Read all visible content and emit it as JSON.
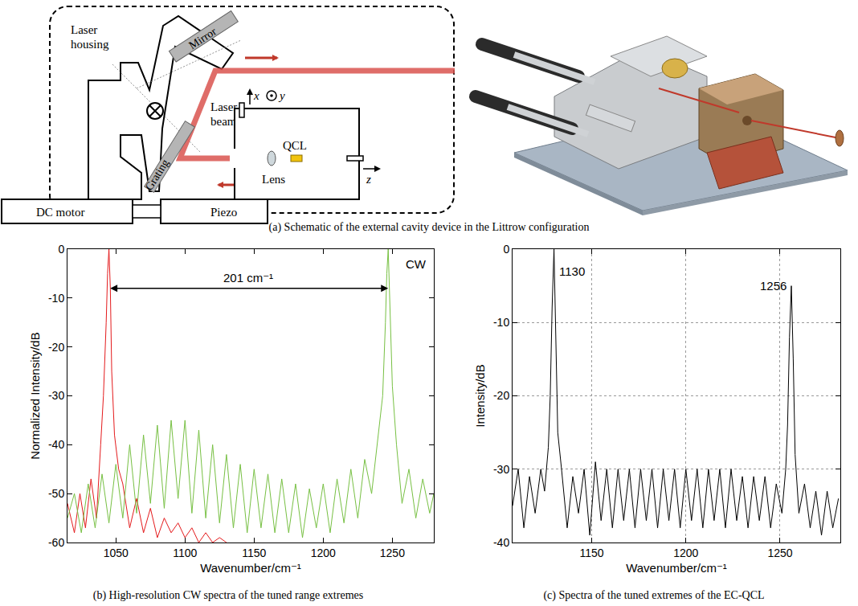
{
  "schematic": {
    "labels": {
      "housing": "Laser housing",
      "mirror": "Mirror",
      "beam": "Laser beam",
      "grating": "Grating",
      "qcl": "QCL",
      "lens": "Lens",
      "motor": "DC motor",
      "piezo": "Piezo",
      "x": "x",
      "y": "y",
      "z": "z"
    },
    "caption": "(a) Schematic of the external cavity device in the Littrow configuration"
  },
  "chart_data": [
    {
      "type": "line",
      "caption": "(b) High-resolution CW spectra of the tuned range extremes",
      "x_label": "Wavenumber/cm⁻¹",
      "y_label": "Normalized Intensity/dB",
      "xlim": [
        1015,
        1280
      ],
      "xticks": [
        1050,
        1100,
        1150,
        1200,
        1250
      ],
      "ylim": [
        -60,
        0
      ],
      "yticks": [
        -60,
        -50,
        -40,
        -30,
        -20,
        -10,
        0
      ],
      "grid": false,
      "annotations": [
        {
          "text": "201 cm⁻¹",
          "x0": 1045,
          "x1": 1247,
          "y": -8
        },
        {
          "text": "CW",
          "x": 1278,
          "y": -3
        }
      ],
      "series": [
        {
          "color": "#e41a1c",
          "x": [
            1015,
            1020,
            1024,
            1028,
            1032,
            1036,
            1039,
            1041,
            1043,
            1044,
            1045,
            1046,
            1047,
            1049,
            1052,
            1055,
            1060,
            1065,
            1070,
            1075,
            1080,
            1085,
            1090,
            1095,
            1100,
            1105,
            1110,
            1115,
            1120,
            1125,
            1130
          ],
          "values": [
            -52,
            -58,
            -50,
            -57,
            -47,
            -55,
            -40,
            -30,
            -15,
            -5,
            0,
            -8,
            -25,
            -38,
            -45,
            -48,
            -57,
            -51,
            -58,
            -53,
            -59,
            -55,
            -58,
            -56,
            -59,
            -57,
            -60,
            -58,
            -60,
            -59,
            -60
          ]
        },
        {
          "color": "#77c043",
          "x": [
            1015,
            1020,
            1025,
            1030,
            1035,
            1040,
            1045,
            1050,
            1055,
            1060,
            1065,
            1070,
            1075,
            1080,
            1085,
            1090,
            1095,
            1100,
            1105,
            1110,
            1115,
            1120,
            1125,
            1130,
            1135,
            1140,
            1145,
            1150,
            1155,
            1160,
            1165,
            1170,
            1175,
            1180,
            1185,
            1190,
            1195,
            1200,
            1205,
            1210,
            1215,
            1220,
            1225,
            1230,
            1235,
            1240,
            1243,
            1245,
            1246,
            1247,
            1248,
            1250,
            1253,
            1257,
            1262,
            1267,
            1272,
            1277,
            1280
          ],
          "values": [
            -55,
            -50,
            -58,
            -48,
            -57,
            -46,
            -56,
            -44,
            -55,
            -40,
            -54,
            -38,
            -52,
            -36,
            -53,
            -35,
            -51,
            -35,
            -54,
            -37,
            -55,
            -40,
            -56,
            -42,
            -57,
            -44,
            -58,
            -45,
            -57,
            -46,
            -58,
            -47,
            -58,
            -48,
            -59,
            -49,
            -57,
            -48,
            -58,
            -47,
            -56,
            -45,
            -55,
            -43,
            -50,
            -38,
            -30,
            -15,
            -5,
            0,
            -10,
            -28,
            -40,
            -52,
            -45,
            -55,
            -47,
            -54,
            -50
          ]
        }
      ]
    },
    {
      "type": "line",
      "caption": "(c) Spectra of the tuned extremes of the EC-QCL",
      "x_label": "Wavenumber/cm⁻¹",
      "y_label": "Intensity/dB",
      "xlim": [
        1108,
        1282
      ],
      "xticks": [
        1150,
        1200,
        1250
      ],
      "ylim": [
        -40,
        0
      ],
      "yticks": [
        -40,
        -30,
        -20,
        -10,
        0
      ],
      "grid": true,
      "annotations": [
        {
          "text": "1130",
          "x": 1130,
          "y": -3
        },
        {
          "text": "1256",
          "x": 1256,
          "y": -5
        }
      ],
      "series": [
        {
          "color": "#000000",
          "x": [
            1108,
            1111,
            1114,
            1117,
            1120,
            1123,
            1125,
            1127,
            1128,
            1129,
            1130,
            1131,
            1132,
            1134,
            1137,
            1140,
            1143,
            1146,
            1149,
            1152,
            1155,
            1158,
            1161,
            1164,
            1167,
            1170,
            1173,
            1176,
            1179,
            1182,
            1185,
            1188,
            1191,
            1194,
            1197,
            1200,
            1203,
            1206,
            1209,
            1212,
            1215,
            1218,
            1221,
            1224,
            1227,
            1230,
            1233,
            1236,
            1239,
            1242,
            1245,
            1248,
            1251,
            1253,
            1254,
            1255,
            1256,
            1257,
            1258,
            1260,
            1263,
            1266,
            1269,
            1272,
            1275,
            1278,
            1281
          ],
          "values": [
            -35,
            -30,
            -38,
            -31,
            -36,
            -30,
            -33,
            -27,
            -20,
            -8,
            0,
            -12,
            -25,
            -30,
            -38,
            -31,
            -36,
            -30,
            -39,
            -29,
            -37,
            -30,
            -38,
            -30,
            -37,
            -30,
            -38,
            -30,
            -37,
            -30,
            -38,
            -30,
            -37,
            -30,
            -38,
            -30,
            -37,
            -30,
            -38,
            -30,
            -37,
            -30,
            -38,
            -30,
            -37,
            -31,
            -38,
            -31,
            -37,
            -31,
            -38,
            -32,
            -36,
            -30,
            -24,
            -12,
            -5,
            -15,
            -28,
            -36,
            -32,
            -38,
            -33,
            -39,
            -33,
            -38,
            -34
          ]
        }
      ]
    }
  ]
}
